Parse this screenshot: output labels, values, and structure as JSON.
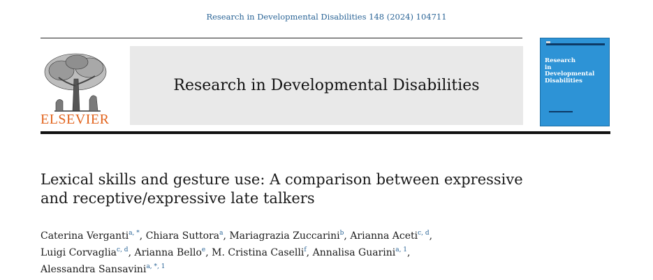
{
  "header": {
    "citation": "Research in Developmental Disabilities 148 (2024) 104711",
    "publisher": "ELSEVIER",
    "journal_title": "Research in Developmental Disabilities",
    "cover_title": "Research\nin\nDevelopmental\nDisabilities"
  },
  "article": {
    "title_line1": "Lexical skills and gesture use: A comparison between expressive",
    "title_line2": "and receptive/expressive late talkers"
  },
  "authors": [
    [
      {
        "name": "Caterina Verganti",
        "sup": "a, *",
        "sep": ", "
      },
      {
        "name": "Chiara Suttora",
        "sup": "a",
        "sep": ", "
      },
      {
        "name": "Mariagrazia Zuccarini",
        "sup": "b",
        "sep": ", "
      },
      {
        "name": "Arianna Aceti",
        "sup": "c, d",
        "sep": ","
      }
    ],
    [
      {
        "name": "Luigi Corvaglia",
        "sup": "c, d",
        "sep": ", "
      },
      {
        "name": "Arianna Bello",
        "sup": "e",
        "sep": ", "
      },
      {
        "name": "M. Cristina Caselli",
        "sup": "f",
        "sep": ", "
      },
      {
        "name": "Annalisa Guarini",
        "sup": "a, 1",
        "sep": ","
      }
    ],
    [
      {
        "name": "Alessandra Sansavini",
        "sup": "a, *, 1",
        "sep": ""
      }
    ]
  ],
  "colors": {
    "link": "#2a6496",
    "publisher": "#e2631c",
    "cover": "#2d93d6",
    "banner": "#e9e9e9"
  }
}
